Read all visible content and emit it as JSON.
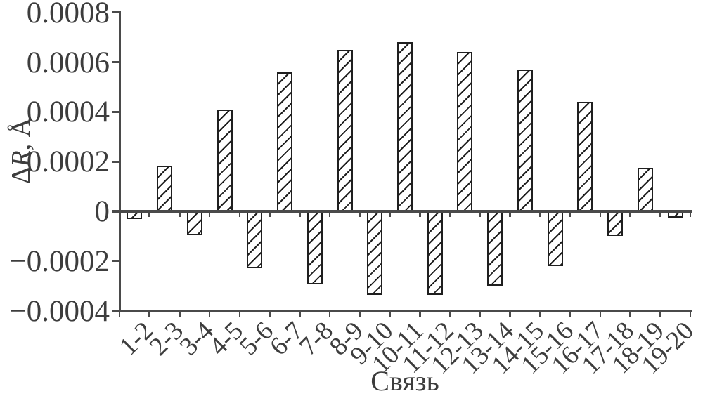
{
  "chart_data": {
    "type": "bar",
    "title": "",
    "xlabel": "Связь",
    "ylabel": "ΔR, Å",
    "ylabel_parts": {
      "delta": "Δ",
      "r_italic": "R",
      "unit": ", Å"
    },
    "categories": [
      "1-2",
      "2-3",
      "3-4",
      "4-5",
      "5-6",
      "6-7",
      "7-8",
      "8-9",
      "9-10",
      "10-11",
      "11-12",
      "12-13",
      "13-14",
      "14-15",
      "15-16",
      "16-17",
      "17-18",
      "18-19",
      "19-20"
    ],
    "values": [
      -3e-05,
      0.000185,
      -9.5e-05,
      0.00041,
      -0.00023,
      0.00056,
      -0.000295,
      0.00065,
      -0.000335,
      0.00068,
      -0.000335,
      0.00064,
      -0.0003,
      0.00057,
      -0.00022,
      0.00044,
      -0.0001,
      0.000175,
      -2.5e-05
    ],
    "ylim": [
      -0.0004,
      0.0008
    ],
    "yticks": [
      {
        "value": 0.0008,
        "label": "0.0008"
      },
      {
        "value": 0.0006,
        "label": "0.0006"
      },
      {
        "value": 0.0004,
        "label": "0.0004"
      },
      {
        "value": 0.0002,
        "label": "0.0002"
      },
      {
        "value": 0,
        "label": "0"
      },
      {
        "value": -0.0002,
        "label": "−0.0002"
      },
      {
        "value": -0.0004,
        "label": "−0.0004"
      }
    ],
    "grid": false,
    "legend": false,
    "bar_style": {
      "fill": "diagonal-hatch",
      "hatch_direction": "/",
      "outline_color": "#1f1f1f",
      "fill_background": "#ffffff"
    }
  },
  "colors": {
    "axis": "#4a4a4a",
    "text": "#3d3d3d",
    "background": "#ffffff",
    "bar_outline": "#1f1f1f"
  }
}
